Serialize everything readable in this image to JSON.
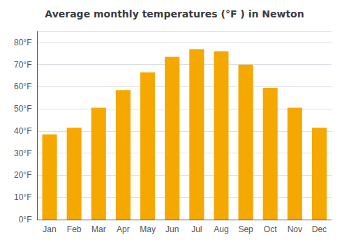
{
  "chart_data": {
    "type": "bar",
    "title": "Average monthly temperatures (°F ) in Newton",
    "categories": [
      "Jan",
      "Feb",
      "Mar",
      "Apr",
      "May",
      "Jun",
      "Jul",
      "Aug",
      "Sep",
      "Oct",
      "Nov",
      "Dec"
    ],
    "values": [
      38.5,
      41.5,
      50.5,
      58.5,
      66.5,
      73.5,
      77.0,
      76.0,
      70.0,
      59.5,
      50.5,
      41.5
    ],
    "color": "#F5A800",
    "ylim": [
      0,
      85
    ],
    "yticks": [
      {
        "value": 0,
        "label": "0°F"
      },
      {
        "value": 10,
        "label": "10°F"
      },
      {
        "value": 20,
        "label": "20°F"
      },
      {
        "value": 30,
        "label": "30°F"
      },
      {
        "value": 40,
        "label": "40°F"
      },
      {
        "value": 50,
        "label": "50°F"
      },
      {
        "value": 60,
        "label": "60°F"
      },
      {
        "value": 70,
        "label": "70°F"
      },
      {
        "value": 80,
        "label": "80°F"
      }
    ],
    "grid": true
  }
}
